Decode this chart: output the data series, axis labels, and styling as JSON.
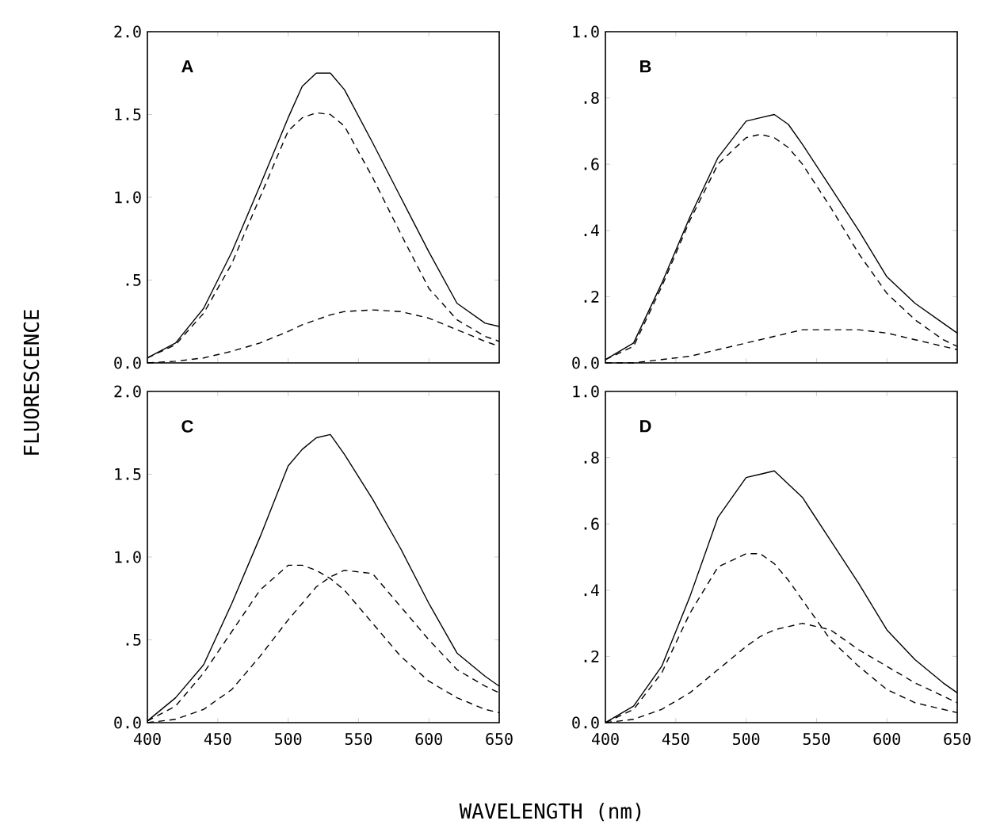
{
  "chart_data": [
    {
      "type": "line",
      "title": "A",
      "ylabel": "FLUORESCENCE",
      "tick_labels": "y",
      "xlim": [
        400,
        650
      ],
      "ylim": [
        0,
        2.0
      ],
      "xticks": [
        400,
        450,
        500,
        550,
        600,
        650
      ],
      "yticks": [
        {
          "value": 0,
          "label": "0.0"
        },
        {
          "value": 0.5,
          "label": ".5"
        },
        {
          "value": 1.0,
          "label": "1.0"
        },
        {
          "value": 1.5,
          "label": "1.5"
        },
        {
          "value": 2.0,
          "label": "2.0"
        }
      ],
      "x": [
        400,
        420,
        440,
        460,
        480,
        500,
        510,
        520,
        530,
        540,
        560,
        580,
        600,
        620,
        640,
        650
      ],
      "series": [
        {
          "color": "#000000",
          "line_style": "solid",
          "values": [
            0.03,
            0.12,
            0.33,
            0.67,
            1.07,
            1.48,
            1.67,
            1.75,
            1.75,
            1.65,
            1.33,
            1.0,
            0.67,
            0.36,
            0.24,
            0.22
          ]
        },
        {
          "color": "#000000",
          "line_style": "dashed",
          "values": [
            0.03,
            0.11,
            0.3,
            0.6,
            1.0,
            1.4,
            1.48,
            1.51,
            1.5,
            1.43,
            1.12,
            0.78,
            0.45,
            0.26,
            0.16,
            0.13
          ]
        },
        {
          "color": "#000000",
          "line_style": "dashed",
          "values": [
            0,
            0.01,
            0.03,
            0.07,
            0.12,
            0.19,
            0.23,
            0.26,
            0.29,
            0.31,
            0.32,
            0.31,
            0.27,
            0.2,
            0.13,
            0.1
          ]
        }
      ]
    },
    {
      "type": "line",
      "title": "B",
      "tick_labels": "y",
      "xlim": [
        400,
        650
      ],
      "ylim": [
        0,
        1.0
      ],
      "xticks": [
        400,
        450,
        500,
        550,
        600,
        650
      ],
      "yticks": [
        {
          "value": 0,
          "label": "0.0"
        },
        {
          "value": 0.2,
          "label": ".2"
        },
        {
          "value": 0.4,
          "label": ".4"
        },
        {
          "value": 0.6,
          "label": ".6"
        },
        {
          "value": 0.8,
          "label": ".8"
        },
        {
          "value": 1.0,
          "label": "1.0"
        }
      ],
      "x": [
        400,
        420,
        440,
        460,
        480,
        500,
        510,
        520,
        530,
        540,
        560,
        580,
        600,
        620,
        640,
        650
      ],
      "series": [
        {
          "color": "#000000",
          "line_style": "solid",
          "values": [
            0.01,
            0.06,
            0.24,
            0.44,
            0.62,
            0.73,
            0.74,
            0.75,
            0.72,
            0.66,
            0.53,
            0.4,
            0.26,
            0.18,
            0.12,
            0.09
          ]
        },
        {
          "color": "#000000",
          "line_style": "dashed",
          "values": [
            0.01,
            0.05,
            0.23,
            0.43,
            0.6,
            0.68,
            0.69,
            0.68,
            0.65,
            0.6,
            0.47,
            0.33,
            0.21,
            0.13,
            0.07,
            0.05
          ]
        },
        {
          "color": "#000000",
          "line_style": "dashed",
          "values": [
            0,
            0,
            0.01,
            0.02,
            0.04,
            0.06,
            0.07,
            0.08,
            0.09,
            0.1,
            0.1,
            0.1,
            0.09,
            0.07,
            0.05,
            0.04
          ]
        }
      ]
    },
    {
      "type": "line",
      "title": "C",
      "xlabel": "WAVELENGTH    (nm)",
      "xlim": [
        400,
        650
      ],
      "ylim": [
        0,
        2.0
      ],
      "xticks": [
        400,
        450,
        500,
        550,
        600,
        650
      ],
      "yticks": [
        {
          "value": 0,
          "label": "0.0"
        },
        {
          "value": 0.5,
          "label": ".5"
        },
        {
          "value": 1.0,
          "label": "1.0"
        },
        {
          "value": 1.5,
          "label": "1.5"
        },
        {
          "value": 2.0,
          "label": "2.0"
        }
      ],
      "x": [
        400,
        420,
        440,
        460,
        480,
        500,
        510,
        520,
        530,
        540,
        560,
        580,
        600,
        620,
        640,
        650
      ],
      "series": [
        {
          "color": "#000000",
          "line_style": "solid",
          "values": [
            0.01,
            0.15,
            0.35,
            0.72,
            1.12,
            1.55,
            1.65,
            1.72,
            1.74,
            1.62,
            1.35,
            1.05,
            0.72,
            0.42,
            0.28,
            0.22
          ]
        },
        {
          "color": "#000000",
          "line_style": "dashed",
          "values": [
            0.01,
            0.1,
            0.3,
            0.55,
            0.8,
            0.95,
            0.95,
            0.92,
            0.87,
            0.8,
            0.6,
            0.4,
            0.25,
            0.15,
            0.08,
            0.06
          ]
        },
        {
          "color": "#000000",
          "line_style": "dashed",
          "values": [
            0,
            0.02,
            0.08,
            0.2,
            0.4,
            0.62,
            0.72,
            0.82,
            0.88,
            0.92,
            0.9,
            0.7,
            0.5,
            0.32,
            0.22,
            0.18
          ]
        }
      ]
    },
    {
      "type": "line",
      "title": "D",
      "xlim": [
        400,
        650
      ],
      "ylim": [
        0,
        1.0
      ],
      "xticks": [
        400,
        450,
        500,
        550,
        600,
        650
      ],
      "yticks": [
        {
          "value": 0,
          "label": "0.0"
        },
        {
          "value": 0.2,
          "label": ".2"
        },
        {
          "value": 0.4,
          "label": ".4"
        },
        {
          "value": 0.6,
          "label": ".6"
        },
        {
          "value": 0.8,
          "label": ".8"
        },
        {
          "value": 1.0,
          "label": "1.0"
        }
      ],
      "x": [
        400,
        420,
        440,
        460,
        480,
        500,
        510,
        520,
        530,
        540,
        560,
        580,
        600,
        620,
        640,
        650
      ],
      "series": [
        {
          "color": "#000000",
          "line_style": "solid",
          "values": [
            0,
            0.05,
            0.17,
            0.38,
            0.62,
            0.74,
            0.75,
            0.76,
            0.72,
            0.68,
            0.55,
            0.42,
            0.28,
            0.19,
            0.12,
            0.09
          ]
        },
        {
          "color": "#000000",
          "line_style": "dashed",
          "values": [
            0,
            0.04,
            0.15,
            0.33,
            0.47,
            0.51,
            0.51,
            0.48,
            0.43,
            0.37,
            0.25,
            0.17,
            0.1,
            0.06,
            0.04,
            0.03
          ]
        },
        {
          "color": "#000000",
          "line_style": "dashed",
          "values": [
            0,
            0.01,
            0.04,
            0.09,
            0.16,
            0.23,
            0.26,
            0.28,
            0.29,
            0.3,
            0.28,
            0.22,
            0.17,
            0.12,
            0.08,
            0.06
          ]
        }
      ]
    }
  ]
}
